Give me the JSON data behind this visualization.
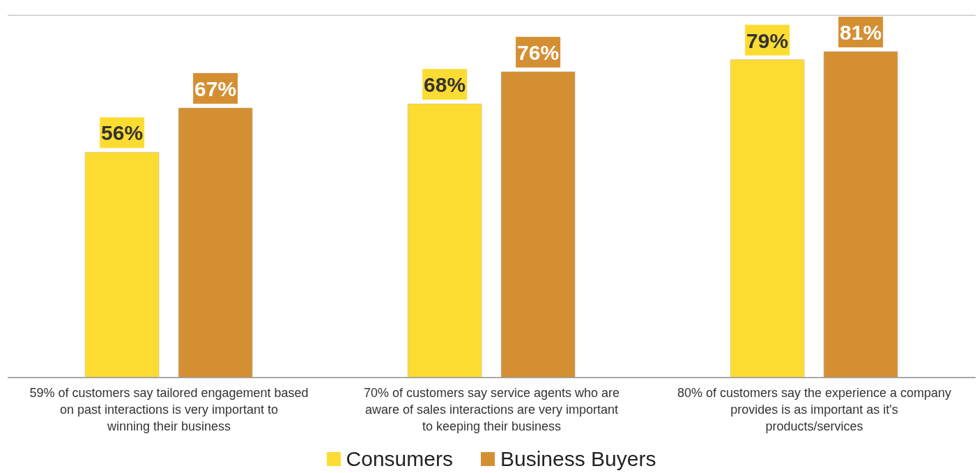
{
  "chart_data": {
    "type": "bar",
    "categories": [
      "59% of customers say tailored engagement based on past interactions is very important to winning their business",
      "70% of customers say service agents who are aware of sales interactions are very important to keeping their business",
      "80% of customers say the experience a company provides is as important as it's products/services"
    ],
    "series": [
      {
        "name": "Consumers",
        "color": "#fddc32",
        "values": [
          56,
          68,
          79
        ],
        "value_labels": [
          "56%",
          "68%",
          "79%"
        ]
      },
      {
        "name": "Business Buyers",
        "color": "#d58f33",
        "values": [
          67,
          76,
          81
        ],
        "value_labels": [
          "67%",
          "76%",
          "81%"
        ]
      }
    ],
    "ylim": [
      0,
      90
    ],
    "tick_labels": "x",
    "grid": "y",
    "legend": "bottom"
  }
}
